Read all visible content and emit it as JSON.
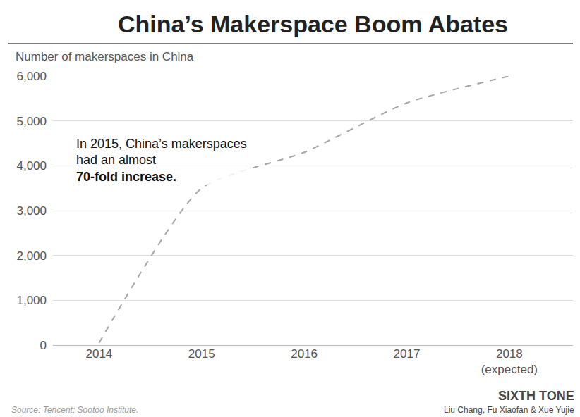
{
  "chart_data": {
    "type": "line",
    "title": "China’s Makerspace Boom Abates",
    "ylabel": "Number of makerspaces in China",
    "categories": [
      "2014",
      "2015",
      "2016",
      "2017",
      "2018 (expected)"
    ],
    "values": [
      50,
      3500,
      4300,
      5400,
      6000
    ],
    "color": "#a6a6a6",
    "line_style": "dash",
    "ylim": [
      0,
      6000
    ],
    "yticks": [
      0,
      {
        "value": 1000,
        "label": "1,000"
      },
      {
        "value": 2000,
        "label": "2,000"
      },
      {
        "value": 3000,
        "label": "3,000"
      },
      {
        "value": 4000,
        "label": "4,000"
      },
      {
        "value": 5000,
        "label": "5,000"
      },
      {
        "value": 6000,
        "label": "6,000"
      }
    ],
    "grid": true,
    "annotation": {
      "lines": [
        "In 2015, China’s makerspaces",
        "had an almost",
        "70-fold increase."
      ]
    },
    "source": "Source: Tencent; Sootoo Institute.",
    "brand": "SIXTH TONE",
    "authors": "Liu Chang, Fu Xiaofan & Xue Yujie"
  }
}
